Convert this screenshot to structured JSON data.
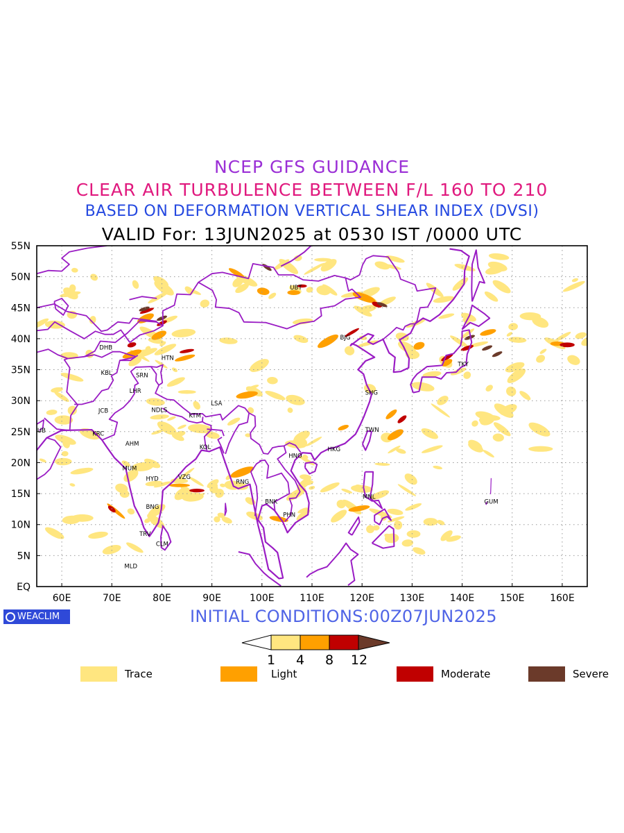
{
  "titles": {
    "line1": "NCEP GFS GUIDANCE",
    "line2": "CLEAR AIR TURBULENCE BETWEEN F/L 160 TO 210",
    "line3": "BASED ON DEFORMATION VERTICAL SHEAR INDEX (DVSI)",
    "line4": "VALID For: 13JUN2025 at 0530 IST /0000 UTC"
  },
  "map": {
    "lat_labels": [
      "55N",
      "50N",
      "45N",
      "40N",
      "35N",
      "30N",
      "25N",
      "20N",
      "15N",
      "10N",
      "5N",
      "EQ"
    ],
    "lon_labels": [
      "60E",
      "70E",
      "80E",
      "90E",
      "100E",
      "110E",
      "120E",
      "130E",
      "140E",
      "150E",
      "160E"
    ],
    "stations": [
      {
        "name": "UBT",
        "lon": 107,
        "lat": 48.3
      },
      {
        "name": "BJG",
        "lon": 117,
        "lat": 40.2
      },
      {
        "name": "TKY",
        "lon": 140.5,
        "lat": 35.9
      },
      {
        "name": "SHG",
        "lon": 122,
        "lat": 31.3
      },
      {
        "name": "TWN",
        "lon": 122,
        "lat": 25.3
      },
      {
        "name": "HKG",
        "lon": 114.5,
        "lat": 22.2
      },
      {
        "name": "HNO",
        "lon": 106.7,
        "lat": 21.1
      },
      {
        "name": "MNL",
        "lon": 121.5,
        "lat": 14.5
      },
      {
        "name": "GUM",
        "lon": 145.8,
        "lat": 13.7
      },
      {
        "name": "PHN",
        "lon": 105.6,
        "lat": 11.6
      },
      {
        "name": "BNK",
        "lon": 102,
        "lat": 13.7
      },
      {
        "name": "RNG",
        "lon": 96.2,
        "lat": 16.9
      },
      {
        "name": "LSA",
        "lon": 91.2,
        "lat": 29.6
      },
      {
        "name": "KTM",
        "lon": 86.8,
        "lat": 27.6
      },
      {
        "name": "KOL",
        "lon": 88.9,
        "lat": 22.5
      },
      {
        "name": "VZG",
        "lon": 84.6,
        "lat": 17.7
      },
      {
        "name": "HYD",
        "lon": 78.2,
        "lat": 17.4
      },
      {
        "name": "BNG",
        "lon": 78.2,
        "lat": 12.9
      },
      {
        "name": "TRV",
        "lon": 76.9,
        "lat": 8.5
      },
      {
        "name": "CLM",
        "lon": 80.2,
        "lat": 6.9
      },
      {
        "name": "MLD",
        "lon": 73.9,
        "lat": 3.3
      },
      {
        "name": "MUM",
        "lon": 73.5,
        "lat": 19.1
      },
      {
        "name": "AHM",
        "lon": 74.1,
        "lat": 23.1
      },
      {
        "name": "KRC",
        "lon": 67.5,
        "lat": 24.7
      },
      {
        "name": "DUB",
        "lon": 55.6,
        "lat": 25.2
      },
      {
        "name": "JCB",
        "lon": 68.7,
        "lat": 28.4
      },
      {
        "name": "NDLS",
        "lon": 79.3,
        "lat": 28.5
      },
      {
        "name": "LHR",
        "lon": 74.9,
        "lat": 31.6
      },
      {
        "name": "SRN",
        "lon": 76.2,
        "lat": 34.1
      },
      {
        "name": "KBL",
        "lon": 69.2,
        "lat": 34.5
      },
      {
        "name": "DHB",
        "lon": 68.9,
        "lat": 38.6
      },
      {
        "name": "HTN",
        "lon": 81.3,
        "lat": 36.9
      }
    ]
  },
  "branding": {
    "logo_text": "WEACLIM",
    "logo_icon": "copyright-circle-icon"
  },
  "initial_conditions": "INITIAL CONDITIONS:00Z07JUN2025",
  "colorbar": {
    "ticks": [
      "1",
      "4",
      "8",
      "12"
    ],
    "colors": [
      "#ffe680",
      "#ffa000",
      "#c00000",
      "#6b3a2a"
    ]
  },
  "legend": [
    {
      "label": "Trace",
      "color": "#ffe680"
    },
    {
      "label": "Light",
      "color": "#ffa000"
    },
    {
      "label": "Moderate",
      "color": "#c00000"
    },
    {
      "label": "Severe",
      "color": "#6b3a2a"
    }
  ],
  "colors": {
    "coast": "#9a1cc4",
    "trace": "#ffe680",
    "light": "#ffa000",
    "moderate": "#c00000",
    "severe": "#6b3a2a"
  }
}
